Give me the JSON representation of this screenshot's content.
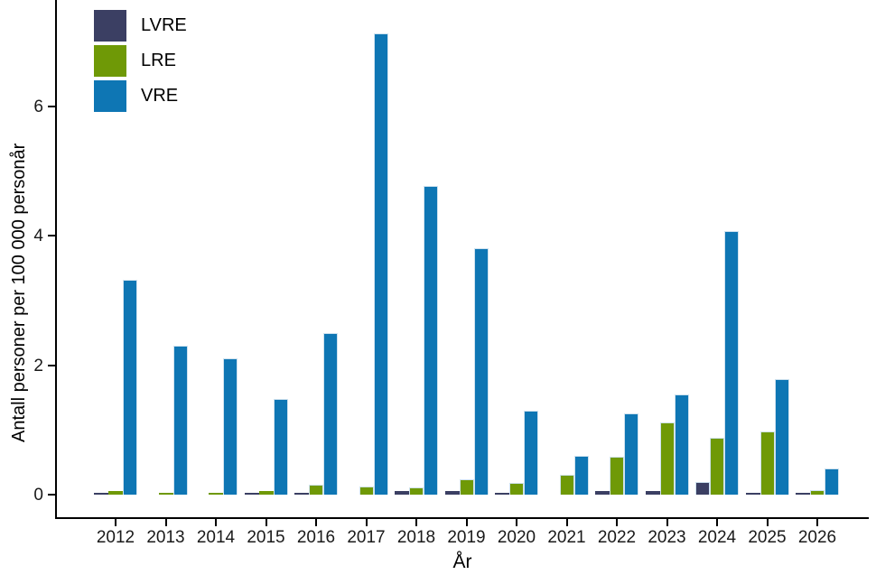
{
  "chart_data": {
    "type": "bar",
    "title": "",
    "xlabel": "År",
    "ylabel": "Antall personer per 100 000 personår",
    "categories": [
      "2012",
      "2013",
      "2014",
      "2015",
      "2016",
      "2017",
      "2018",
      "2019",
      "2020",
      "2021",
      "2022",
      "2023",
      "2024",
      "2025",
      "2026"
    ],
    "series": [
      {
        "name": "LVRE",
        "color": "#3B3F63",
        "values": [
          0.03,
          0,
          0,
          0.03,
          0.03,
          0,
          0.05,
          0.05,
          0.03,
          0,
          0.05,
          0.05,
          0.2,
          0.03,
          0.03
        ]
      },
      {
        "name": "LRE",
        "color": "#6F9906",
        "values": [
          0.06,
          0.02,
          0.02,
          0.06,
          0.15,
          0.13,
          0.11,
          0.24,
          0.18,
          0.3,
          0.58,
          1.12,
          0.88,
          0.98,
          0.07
        ]
      },
      {
        "name": "VRE",
        "color": "#0E76B4",
        "values": [
          3.32,
          2.3,
          2.1,
          1.48,
          2.5,
          7.12,
          4.76,
          3.8,
          1.3,
          0.6,
          1.26,
          1.55,
          4.07,
          1.78,
          0.4
        ]
      }
    ],
    "yticks": [
      0,
      2,
      4,
      6
    ],
    "ylim": [
      0,
      7.6
    ],
    "grid": false,
    "legend_position": "inside-top-left",
    "bar_outline_color": "#cfe2ef",
    "axis_color": "#000000"
  },
  "legend": {
    "items": [
      {
        "label": "LVRE",
        "color": "#3B3F63"
      },
      {
        "label": "LRE",
        "color": "#6F9906"
      },
      {
        "label": "VRE",
        "color": "#0E76B4"
      }
    ]
  }
}
